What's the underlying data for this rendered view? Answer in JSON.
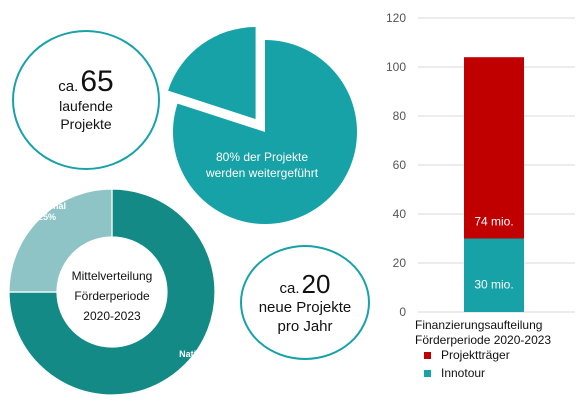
{
  "colors": {
    "teal": "#17a2a8",
    "teal_dark": "#138a86",
    "teal_light": "#8ec4c6",
    "red": "#c00000",
    "grid": "#d9d9d9",
    "axis_text": "#555555"
  },
  "stat_left": {
    "prefix": "ca.",
    "number": "65",
    "line1": "laufende",
    "line2": "Projekte"
  },
  "stat_right": {
    "prefix": "ca.",
    "number": "20",
    "line1": "neue Projekte",
    "line2": "pro Jahr"
  },
  "legend": {
    "title_line1": "Finanzierungsaufteilung",
    "title_line2": "Förderperiode 2020-2023",
    "items": [
      {
        "label": "Projektträger",
        "color": "#c00000"
      },
      {
        "label": "Innotour",
        "color": "#17a2a8"
      }
    ]
  },
  "chart_data": [
    {
      "type": "pie",
      "slices": [
        {
          "label": "80% der Projekte werden weitergeführt",
          "value": 80,
          "color": "#17a2a8"
        },
        {
          "label": "",
          "value": 20,
          "color": "#17a2a8",
          "exploded": true
        }
      ],
      "labels": {
        "line1": "80% der Projekte",
        "line2": "werden weitergeführt"
      }
    },
    {
      "type": "pie",
      "donut": true,
      "center_text": [
        "Mittelverteilung",
        "Förderperiode",
        "2020-2023"
      ],
      "slices": [
        {
          "label": "National",
          "value": 75,
          "pct_label": "75%",
          "color": "#138a86"
        },
        {
          "label": "Regional",
          "value": 25,
          "pct_label": "25%",
          "color": "#8ec4c6"
        }
      ]
    },
    {
      "type": "bar",
      "stacked": true,
      "ylim": [
        0,
        120
      ],
      "yticks": [
        0,
        20,
        40,
        60,
        80,
        100,
        120
      ],
      "grid": true,
      "series": [
        {
          "name": "Innotour",
          "value": 30,
          "label": "30 mio.",
          "color": "#17a2a8"
        },
        {
          "name": "Projektträger",
          "value": 74,
          "label": "74 mio.",
          "color": "#c00000"
        }
      ]
    }
  ]
}
